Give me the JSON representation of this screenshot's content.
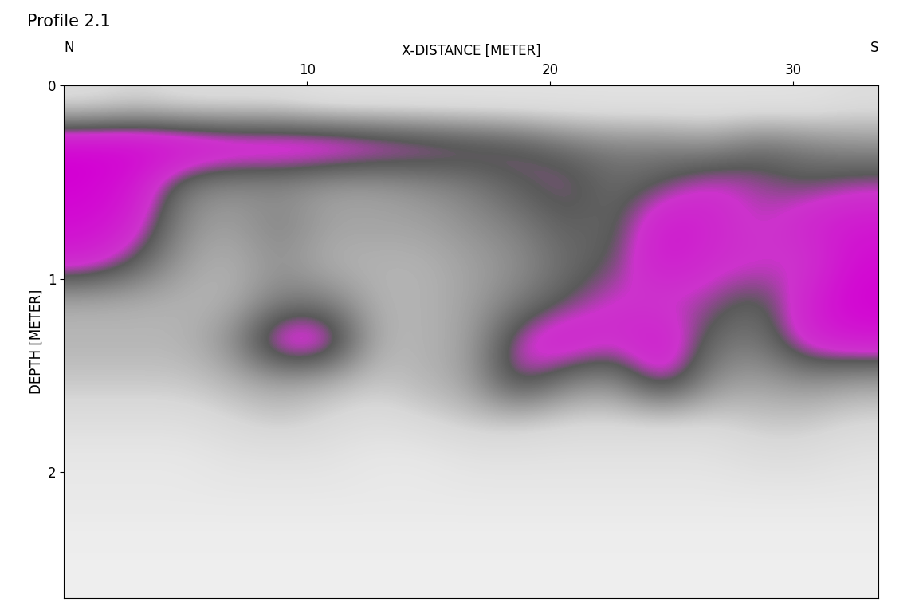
{
  "chart_data": {
    "type": "heatmap",
    "title": "Profile 2.1",
    "x_label": "X-DISTANCE [METER]",
    "y_label": "DEPTH [METER]",
    "direction_labels": [
      "N",
      "S"
    ],
    "xlim": [
      0,
      33.5
    ],
    "ylim": [
      2.65,
      0
    ],
    "xticks": [
      10,
      20,
      30
    ],
    "yticks": [
      0,
      1,
      2
    ],
    "cell_range": [
      0,
      2
    ],
    "cells": [
      [
        0.6,
        0.7,
        0.6,
        0.6,
        0.6,
        0.5,
        0.5,
        0.5,
        0.5,
        0.5,
        0.5,
        0.5,
        0.5,
        0.5,
        0.5,
        0.5,
        0.6
      ],
      [
        2.0,
        2.0,
        2.0,
        1.9,
        1.9,
        1.9,
        1.8,
        1.7,
        1.6,
        1.5,
        1.3,
        1.2,
        1.2,
        1.1,
        1.3,
        1.2,
        1.1
      ],
      [
        2.0,
        1.8,
        1.2,
        1.1,
        1.1,
        1.0,
        1.0,
        1.1,
        1.2,
        1.4,
        1.5,
        1.3,
        1.4,
        1.6,
        1.5,
        1.4,
        1.5
      ],
      [
        1.9,
        1.7,
        1.1,
        1.0,
        1.2,
        1.0,
        1.0,
        1.0,
        1.1,
        1.2,
        1.4,
        1.3,
        1.8,
        1.7,
        1.5,
        1.7,
        1.8
      ],
      [
        1.7,
        1.4,
        1.0,
        0.9,
        1.1,
        0.9,
        0.9,
        0.9,
        1.0,
        1.1,
        1.3,
        1.4,
        1.8,
        1.6,
        1.6,
        1.5,
        1.9
      ],
      [
        0.9,
        0.9,
        0.9,
        0.9,
        1.2,
        1.2,
        0.9,
        0.9,
        1.0,
        1.2,
        1.4,
        1.6,
        1.5,
        1.5,
        1.3,
        1.7,
        2.0
      ],
      [
        0.9,
        0.9,
        0.9,
        1.1,
        1.8,
        1.8,
        0.9,
        0.9,
        1.0,
        1.6,
        1.8,
        1.6,
        1.8,
        1.3,
        1.2,
        1.7,
        1.8
      ],
      [
        0.8,
        0.8,
        0.8,
        0.9,
        1.0,
        0.9,
        0.8,
        0.9,
        1.0,
        1.6,
        1.2,
        1.1,
        1.7,
        1.1,
        1.0,
        1.1,
        1.0
      ],
      [
        0.6,
        0.6,
        0.6,
        0.7,
        0.8,
        0.7,
        0.6,
        0.7,
        0.8,
        0.8,
        0.7,
        0.7,
        0.7,
        0.7,
        0.8,
        0.8,
        0.7
      ],
      [
        0.4,
        0.4,
        0.4,
        0.5,
        0.5,
        0.5,
        0.4,
        0.4,
        0.5,
        0.5,
        0.5,
        0.5,
        0.5,
        0.5,
        0.6,
        0.6,
        0.5
      ],
      [
        0.4,
        0.4,
        0.4,
        0.4,
        0.4,
        0.4,
        0.4,
        0.4,
        0.4,
        0.4,
        0.4,
        0.4,
        0.4,
        0.4,
        0.4,
        0.4,
        0.4
      ],
      [
        0.3,
        0.3,
        0.3,
        0.3,
        0.3,
        0.3,
        0.3,
        0.3,
        0.3,
        0.3,
        0.3,
        0.3,
        0.3,
        0.3,
        0.3,
        0.3,
        0.3
      ],
      [
        0.3,
        0.3,
        0.3,
        0.3,
        0.3,
        0.3,
        0.3,
        0.3,
        0.3,
        0.3,
        0.3,
        0.3,
        0.3,
        0.3,
        0.3,
        0.3,
        0.3
      ]
    ]
  }
}
